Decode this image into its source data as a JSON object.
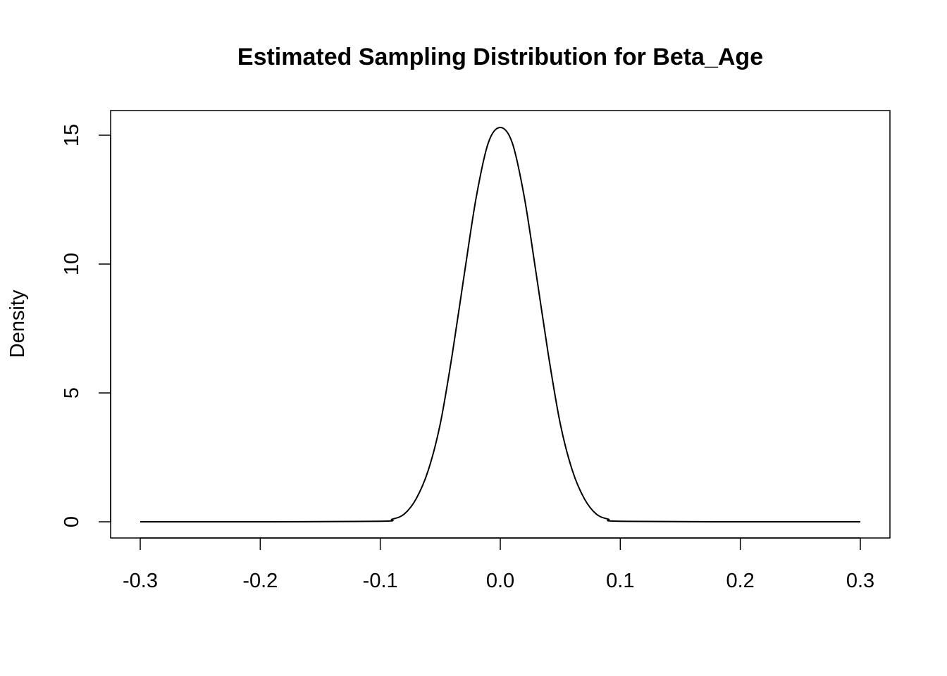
{
  "chart_data": {
    "type": "line",
    "title": "Estimated Sampling Distribution for Beta_Age",
    "xlabel": "",
    "ylabel": "Density",
    "xlim": [
      -0.3,
      0.3
    ],
    "ylim": [
      0,
      15.5
    ],
    "x_ticks": [
      -0.3,
      -0.2,
      -0.1,
      0.0,
      0.1,
      0.2,
      0.3
    ],
    "x_tick_labels": [
      "-0.3",
      "-0.2",
      "-0.1",
      "0.0",
      "0.1",
      "0.2",
      "0.3"
    ],
    "y_ticks": [
      0,
      5,
      10,
      15
    ],
    "y_tick_labels": [
      "0",
      "5",
      "10",
      "15"
    ],
    "grid": false,
    "legend": "none",
    "series": [
      {
        "name": "density",
        "color": "#000000",
        "x": [
          -0.3,
          -0.2,
          -0.1,
          -0.09,
          -0.08,
          -0.07,
          -0.06,
          -0.05,
          -0.04,
          -0.03,
          -0.02,
          -0.01,
          0.0,
          0.01,
          0.02,
          0.03,
          0.04,
          0.05,
          0.06,
          0.07,
          0.08,
          0.09,
          0.1,
          0.2,
          0.3
        ],
        "y": [
          0.0,
          0.0,
          0.02,
          0.1,
          0.3,
          0.9,
          2.0,
          3.8,
          6.5,
          9.6,
          12.6,
          14.7,
          15.3,
          14.7,
          12.6,
          9.6,
          6.5,
          3.8,
          2.0,
          0.9,
          0.3,
          0.1,
          0.02,
          0.0,
          0.0
        ]
      }
    ]
  }
}
